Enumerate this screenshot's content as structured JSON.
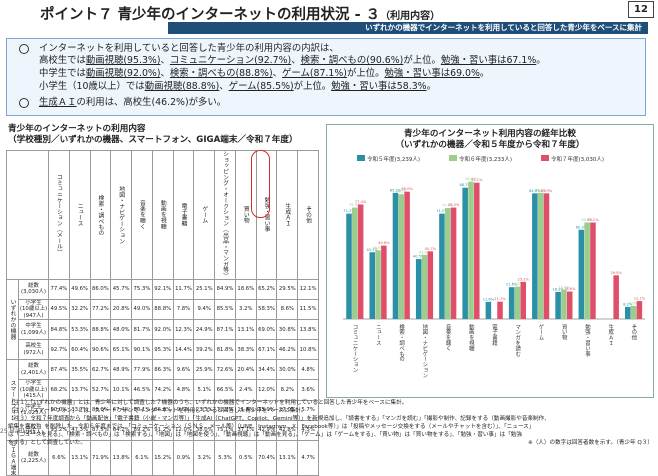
{
  "header": {
    "title": "ポイント７ 青少年のインターネットの利用状況 - ３",
    "subtitle": "（利用内容）",
    "page": "12",
    "banner": "いずれかの機器でインターネットを利用していると回答した青少年をベースに集計"
  },
  "summary": {
    "line1": "インターネットを利用していると回答した青少年の利用内容の内訳は、",
    "line2a": "高校生では",
    "line2b": "動画視聴(95.3%)",
    "line2c": "、",
    "line2d": "コミュニケーション(92.7%)",
    "line2e": "、",
    "line2f": "検索・調べもの(90.6%)",
    "line2g": "が上位。",
    "line2h": "勉強・習い事は67.1%",
    "line2i": "。",
    "line3a": "中学生では",
    "line3b": "動画視聴(92.0%)",
    "line3c": "、",
    "line3d": "検索・調べもの(88.8%)",
    "line3e": "、",
    "line3f": "ゲーム(87.1%)",
    "line3g": "が上位。",
    "line3h": "勉強・習い事は69.0%",
    "line3i": "。",
    "line4a": "小学生（10歳以上）では",
    "line4b": "動画視聴(88.8%)",
    "line4c": "、",
    "line4d": "ゲーム(85.5%)",
    "line4e": "が上位。",
    "line4f": "勉強・習い事は58.3%",
    "line4g": "。",
    "line5a": "生成ＡＩ",
    "line5b": "の利用は、高校生(46.2%)が多い。"
  },
  "left": {
    "title1": "青少年のインターネットの利用内容",
    "title2": "（学校種別／いずれかの機器、スマートフォン、GIGA端末／令和７年度）",
    "col_headers": [
      "コミュニケーション（メール）",
      "ニュース",
      "検索・調べもの",
      "地図・ナビゲーション",
      "音楽を聴く",
      "動画を視聴",
      "電子書籍",
      "ゲーム",
      "ショッピング・オークション（出品・マンガ等）",
      "買い物",
      "勉強・習い事",
      "生成ＡＩ",
      "その他"
    ],
    "groups": [
      {
        "name": "いずれかの機器",
        "rows": [
          {
            "label": "総数\n(3,030人)",
            "vals": [
              "77.4%",
              "49.6%",
              "86.0%",
              "45.7%",
              "75.3%",
              "92.1%",
              "11.7%",
              "25.1%",
              "84.9%",
              "18.6%",
              "65.2%",
              "29.5%",
              "12.1%"
            ]
          },
          {
            "label": "小学生\n(10歳以上)\n(947人)",
            "vals": [
              "49.5%",
              "32.2%",
              "77.2%",
              "20.8%",
              "49.0%",
              "88.8%",
              "7.8%",
              "9.4%",
              "85.5%",
              "3.2%",
              "58.3%",
              "8.6%",
              "11.5%"
            ]
          },
          {
            "label": "中学生\n(1,099人)",
            "vals": [
              "84.8%",
              "53.3%",
              "88.8%",
              "48.0%",
              "81.7%",
              "92.0%",
              "12.3%",
              "24.9%",
              "87.1%",
              "13.1%",
              "69.0%",
              "30.8%",
              "13.8%"
            ]
          },
          {
            "label": "高校生\n(972人)",
            "vals": [
              "92.7%",
              "60.4%",
              "90.6%",
              "65.1%",
              "90.1%",
              "95.3%",
              "14.4%",
              "39.2%",
              "81.8%",
              "38.3%",
              "67.1%",
              "46.2%",
              "10.8%"
            ]
          }
        ]
      },
      {
        "name": "スマートフォン",
        "rows": [
          {
            "label": "総数\n(2,401人)",
            "vals": [
              "87.4%",
              "35.5%",
              "62.7%",
              "48.9%",
              "77.9%",
              "86.3%",
              "9.6%",
              "25.9%",
              "72.6%",
              "20.4%",
              "34.4%",
              "30.0%",
              "4.8%"
            ]
          },
          {
            "label": "小学生\n(10歳以上)\n(415人)",
            "vals": [
              "68.2%",
              "13.7%",
              "52.7%",
              "10.1%",
              "46.5%",
              "74.2%",
              "4.8%",
              "5.1%",
              "66.5%",
              "2.4%",
              "12.0%",
              "8.2%",
              "3.6%"
            ]
          },
          {
            "label": "中学生\n(1,025人)",
            "vals": [
              "90.0%",
              "33.7%",
              "86.0%",
              "47.4%",
              "80.1%",
              "86.6%",
              "9.5%",
              "23.3%",
              "72.8%",
              "11.8%",
              "35.9%",
              "27.0%",
              "5.7%"
            ]
          },
          {
            "label": "高校生\n(951人)",
            "vals": [
              "93.2%",
              "47.3%",
              "87.5%",
              "64.2%",
              "89.2%",
              "91.2%",
              "12.0%",
              "38.0%",
              "75.1%",
              "37.1%",
              "42.9%",
              "42.8%",
              "4.5%"
            ]
          }
        ]
      },
      {
        "name": "ＧＩＧＡ端末",
        "rows": [
          {
            "label": "総数\n(2,225人)",
            "vals": [
              "6.6%",
              "13.1%",
              "71.9%",
              "13.8%",
              "6.1%",
              "15.2%",
              "0.9%",
              "3.2%",
              "5.3%",
              "0.5%",
              "70.4%",
              "13.1%",
              "4.7%"
            ]
          }
        ]
      }
    ]
  },
  "right": {
    "title1": "青少年のインターネット利用内容の経年比較",
    "title2": "（いずれかの機器／令和５年度から令和７年度）"
  },
  "chart_data": {
    "type": "bar",
    "title": "青少年のインターネット利用内容の経年比較",
    "subtitle": "（いずれかの機器／令和５年度から令和７年度）",
    "categories": [
      "コミュニケーション",
      "ニュース",
      "検索・調べもの",
      "地図・ナビゲーション",
      "音楽を聴く",
      "動画を視聴",
      "電子書籍",
      "マンガを読む",
      "ゲーム",
      "買い物",
      "勉強・習い事",
      "生成ＡＩ",
      "その他"
    ],
    "series": [
      {
        "name": "令和５年度(3,239人)",
        "color": "#2b8fa6",
        "values": [
          71.2,
          45.1,
          85.2,
          40.5,
          71.2,
          88.7,
          11.6,
          21.5,
          84.9,
          18.3,
          60.3,
          null,
          8.2
        ]
      },
      {
        "name": "令和６年度(3,233人)",
        "color": "#9acd8e",
        "values": [
          75.3,
          46.4,
          84.3,
          43.4,
          75.0,
          92.8,
          null,
          21.9,
          85.3,
          19.7,
          65.2,
          null,
          8.8
        ]
      },
      {
        "name": "令和７年度(3,030人)",
        "color": "#e04f6a",
        "values": [
          77.4,
          49.6,
          86.0,
          45.7,
          75.3,
          92.1,
          11.7,
          25.1,
          84.9,
          18.6,
          65.2,
          29.5,
          12.1
        ]
      }
    ],
    "ylim": [
      0,
      100
    ],
    "legend": "top"
  },
  "notes": {
    "n1": "（注１）「いずれかの機器」とは、青少年に対して調査した７機器のうち、いずれかの機器でインターネットを利用していると回答した青少年をベースに集計。",
    "n2": "（注２）「スマートフォン」とは、スマートフォンでインターネットを利用していると回答した青少年をベースに集計。",
    "n3": "（注３）令和７年度調査から「動画配信」「電子書籍（小説・マンガ等）」「生成AI（ChatGPT、Copilot、Gemini等）」を新規追加し、「読書をする」「マンガを読む」「撮影や制作、記録をする（動画撮影や音楽制作、",
    "n3b": "編集を含む）」を削除した。令和６年度までは、「コミュニケーション（ＳＮＳ、メール等）（LINE、Instagram、X、Facebook等）」は「投稿やメッセージ交換をする（メールやチャットを含む）」、「ニュース」",
    "n3c": "は「ニュースを見る」、「検索・調べもの」は「検索する」、「地図」は「地図を使う」、「動画視聴」は「動画を見る」、「ゲーム」は「ゲームをする」、「買い物」は「買い物をする」、「勉強・習い事」は「勉強",
    "n3d": "をする」として調査していた。",
    "n4": "※（人）の数字は回答者数を示す。（青少年 Q３）",
    "side": "25 MaRUTIE"
  }
}
